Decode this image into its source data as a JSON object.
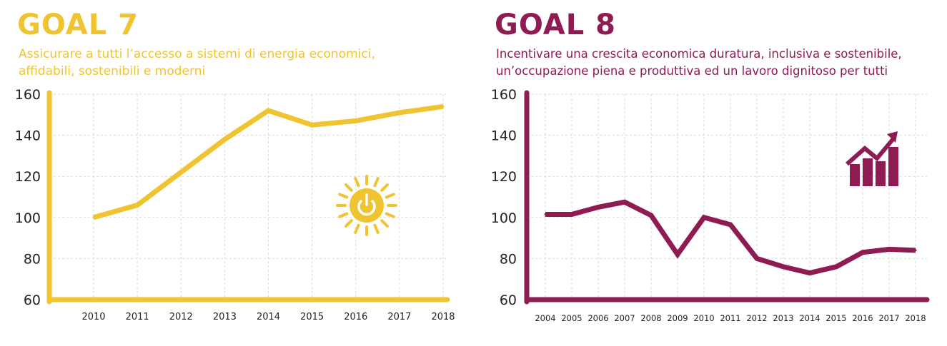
{
  "panels": [
    {
      "title": "GOAL 7",
      "subtitle_1": "Assicurare a tutti l’accesso a sistemi di energia economici,",
      "subtitle_2": "affidabili, sostenibili e moderni",
      "color": "#f0c330",
      "icon": "sun-power-icon"
    },
    {
      "title": "GOAL 8",
      "subtitle_1": "Incentivare una crescita economica duratura, inclusiva e sostenibile,",
      "subtitle_2": "un’occupazione piena e produttiva ed un lavoro dignitoso per tutti",
      "color": "#8e1b51",
      "icon": "growth-bar-chart-icon"
    }
  ],
  "chart_data": [
    {
      "type": "line",
      "title": "",
      "xlabel": "",
      "ylabel": "",
      "x": [
        "2010",
        "2011",
        "2012",
        "2013",
        "2014",
        "2015",
        "2016",
        "2017",
        "2018"
      ],
      "y_ticks": [
        "160",
        "140",
        "120",
        "100",
        "80",
        "60"
      ],
      "ylim": [
        60,
        160
      ],
      "grid": true,
      "series": [
        {
          "values": [
            100,
            106,
            122,
            138,
            152,
            145,
            147,
            151,
            154
          ]
        }
      ]
    },
    {
      "type": "line",
      "title": "",
      "xlabel": "",
      "ylabel": "",
      "x": [
        "2004",
        "2005",
        "2006",
        "2007",
        "2008",
        "2009",
        "2010",
        "2011",
        "2012",
        "2013",
        "2014",
        "2015",
        "2016",
        "2017",
        "2018"
      ],
      "y_ticks": [
        "160",
        "140",
        "120",
        "100",
        "80",
        "60"
      ],
      "ylim": [
        60,
        160
      ],
      "grid": true,
      "series": [
        {
          "values": [
            101.5,
            101.5,
            105,
            107.5,
            101,
            82,
            100,
            96.5,
            80,
            76,
            73,
            76,
            83,
            84.5,
            84
          ]
        }
      ]
    }
  ]
}
